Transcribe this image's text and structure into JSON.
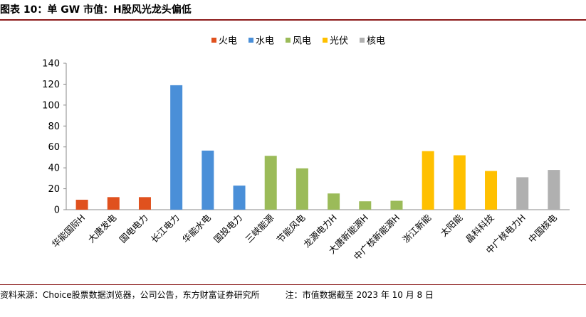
{
  "header": {
    "title": "图表 10：单 GW 市值：H股风光龙头偏低"
  },
  "footer": {
    "source": "资料来源：Choice股票数据浏览器，公司公告，东方财富证券研究所",
    "note": "注：市值数据截至 2023 年 10 月 8 日"
  },
  "chart_data": {
    "type": "bar",
    "categories": [
      "华能国际H",
      "大唐发电",
      "国电电力",
      "长江电力",
      "华能水电",
      "国投电力",
      "三峡能源",
      "节能风电",
      "龙源电力H",
      "大唐新能源H",
      "中广核新能源H",
      "浙江新能",
      "太阳能",
      "晶科科技",
      "中广核电力H",
      "中国核电"
    ],
    "values": [
      9.5,
      12,
      12,
      119,
      56.5,
      23,
      51.5,
      39.5,
      15.5,
      8,
      8.5,
      56,
      52,
      37,
      31,
      38
    ],
    "category_series": [
      "火电",
      "火电",
      "火电",
      "水电",
      "水电",
      "水电",
      "风电",
      "风电",
      "风电",
      "风电",
      "风电",
      "光伏",
      "光伏",
      "光伏",
      "核电",
      "核电"
    ],
    "series": [
      {
        "name": "火电",
        "color": "#e0511e"
      },
      {
        "name": "水电",
        "color": "#4a8fd8"
      },
      {
        "name": "风电",
        "color": "#9bbb59"
      },
      {
        "name": "光伏",
        "color": "#ffc000"
      },
      {
        "name": "核电",
        "color": "#b0b0b0"
      }
    ],
    "ylim": [
      0,
      140
    ],
    "yticks": [
      0,
      20,
      40,
      60,
      80,
      100,
      120,
      140
    ],
    "legend_position": "top-center",
    "grid": false
  }
}
